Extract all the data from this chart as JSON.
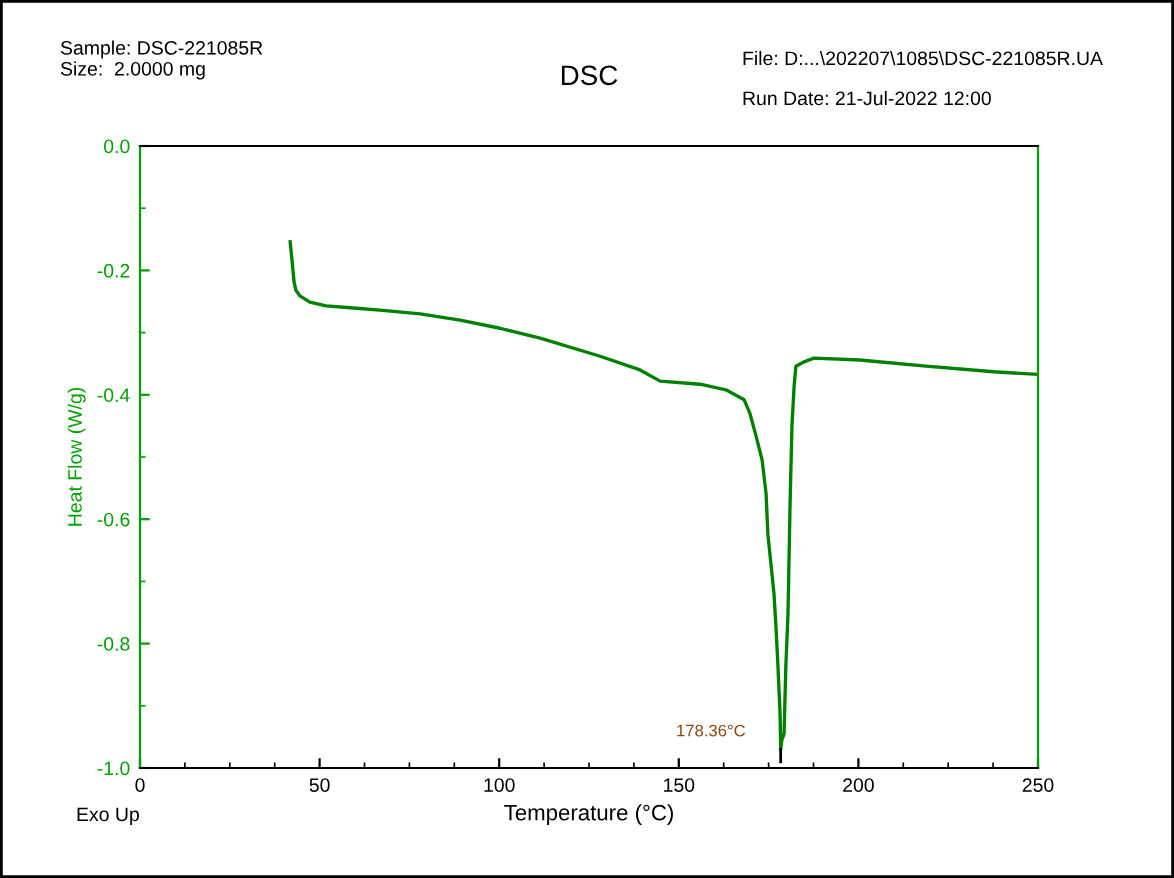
{
  "chart_data": {
    "type": "line",
    "title": "DSC",
    "xlabel": "Temperature (°C)",
    "ylabel": "Heat Flow (W/g)",
    "annotations": [
      "Sample: DSC-221085R\nSize:  2.0000 mg",
      "File: D:...\\202207\\1085\\DSC-221085R.UA",
      "Run Date: 21-Jul-2022 12:00",
      "Exo Up",
      "178.36°C"
    ],
    "series": [
      {
        "color": "#008000",
        "x": [
          41.8,
          42.3,
          42.9,
          43.4,
          44.5,
          47.3,
          51.8,
          58.5,
          66.8,
          78.0,
          89.1,
          100.2,
          111.4,
          128.1,
          139.2,
          144.8,
          155.9,
          163.1,
          168.2,
          169.8,
          171.5,
          173.2,
          174.3,
          174.8,
          176.5,
          177.1,
          177.6,
          178.2,
          178.36,
          178.7,
          179.3,
          179.8,
          180.4,
          181.0,
          181.5,
          182.1,
          182.6,
          184.9,
          187.6,
          200.4,
          218.8,
          237.7,
          249.4
        ],
        "values": [
          -0.154,
          -0.183,
          -0.219,
          -0.232,
          -0.241,
          -0.251,
          -0.257,
          -0.26,
          -0.264,
          -0.27,
          -0.28,
          -0.293,
          -0.309,
          -0.338,
          -0.36,
          -0.378,
          -0.383,
          -0.392,
          -0.408,
          -0.43,
          -0.466,
          -0.505,
          -0.559,
          -0.624,
          -0.72,
          -0.778,
          -0.836,
          -0.913,
          -0.97,
          -0.955,
          -0.945,
          -0.836,
          -0.752,
          -0.569,
          -0.45,
          -0.386,
          -0.354,
          -0.347,
          -0.341,
          -0.344,
          -0.354,
          -0.363,
          -0.367
        ]
      }
    ],
    "xlim": [
      0,
      250
    ],
    "xticks": [
      0,
      50,
      100,
      150,
      200,
      250
    ],
    "ylim": [
      -1.0,
      0.0
    ],
    "yticks": [
      {
        "value": 0.0,
        "label": "0.0"
      },
      {
        "value": -0.2,
        "label": "-0.2"
      },
      {
        "value": -0.4,
        "label": "-0.4"
      },
      {
        "value": -0.6,
        "label": "-0.6"
      },
      {
        "value": -0.8,
        "label": "-0.8"
      },
      {
        "value": -1.0,
        "label": "-1.0"
      }
    ],
    "grid": false,
    "legend": false,
    "marker": "none",
    "line_style": "solid"
  }
}
